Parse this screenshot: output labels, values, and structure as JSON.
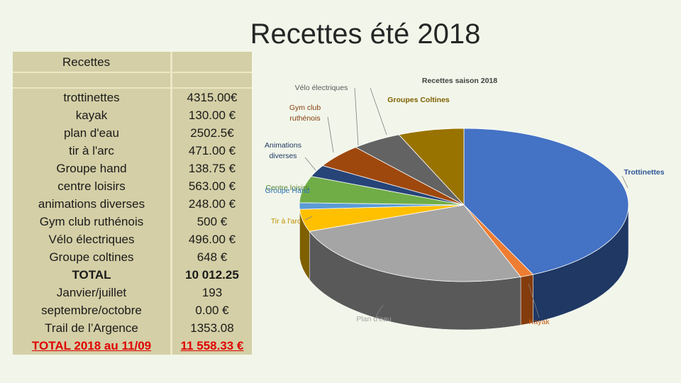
{
  "slide": {
    "title": "Recettes été 2018"
  },
  "table": {
    "header": "Recettes",
    "rows": [
      {
        "name": "trottinettes",
        "value": "4315.00€",
        "style": "normal"
      },
      {
        "name": "kayak",
        "value": "130.00 €",
        "style": "normal"
      },
      {
        "name": "plan d'eau",
        "value": "2502.5€",
        "style": "normal"
      },
      {
        "name": "tir à l'arc",
        "value": "471.00 €",
        "style": "normal"
      },
      {
        "name": "Groupe hand",
        "value": "138.75 €",
        "style": "normal"
      },
      {
        "name": "centre loisirs",
        "value": "563.00 €",
        "style": "normal"
      },
      {
        "name": "animations diverses",
        "value": "248.00 €",
        "style": "normal"
      },
      {
        "name": "Gym club ruthénois",
        "value": "500 €",
        "style": "normal"
      },
      {
        "name": "Vélo électriques",
        "value": "496.00 €",
        "style": "normal"
      },
      {
        "name": "Groupe coltines",
        "value": "648 €",
        "style": "normal"
      },
      {
        "name": "TOTAL",
        "value": "10 012.25",
        "style": "bold"
      },
      {
        "name": "Janvier/juillet",
        "value": "193",
        "style": "normal"
      },
      {
        "name": "septembre/octobre",
        "value": "0.00 €",
        "style": "normal"
      },
      {
        "name": "Trail de l’Argence",
        "value": "1353.08",
        "style": "normal"
      },
      {
        "name": "TOTAL 2018 au 11/09",
        "value": "11 558.33 €",
        "style": "red"
      }
    ]
  },
  "chart_data": {
    "type": "pie",
    "title": "Recettes saison 2018",
    "three_d": true,
    "slices": [
      {
        "label": "Trottinettes",
        "value": 4315.0,
        "color": "#4472c4",
        "side": "#1f3864"
      },
      {
        "label": "Kayak",
        "value": 130.0,
        "color": "#ed7d31",
        "side": "#843c0c"
      },
      {
        "label": "Plan d'eau",
        "value": 2502.5,
        "color": "#a5a5a5",
        "side": "#595959"
      },
      {
        "label": "Tir à l'arc",
        "value": 471.0,
        "color": "#ffc000",
        "side": "#7f6000"
      },
      {
        "label": "Groupe Hand",
        "value": 138.75,
        "color": "#5b9bd5",
        "side": "#1f4e79"
      },
      {
        "label": "Centre loisirs",
        "value": 563.0,
        "color": "#70ad47",
        "side": "#375623"
      },
      {
        "label": "Animations diverses",
        "value": 248.0,
        "color": "#264478",
        "side": "#132240"
      },
      {
        "label": "Gym club ruthénois",
        "value": 500.0,
        "color": "#9e480e",
        "side": "#4f2407"
      },
      {
        "label": "Vélo électriques",
        "value": 496.0,
        "color": "#636363",
        "side": "#333333"
      },
      {
        "label": "Groupes Coltines",
        "value": 648.0,
        "color": "#997300",
        "side": "#4d3a00"
      }
    ],
    "label_texts": {
      "trottinettes": "Trottinettes",
      "kayak": "Kayak",
      "plan_eau": "Plan d'eau",
      "tir": "Tir à l'arc",
      "groupe_hand": "Groupe Hand",
      "centre": "Centre loisirs",
      "anim_line1": "Animations",
      "anim_line2": "diverses",
      "gym_line1": "Gym club",
      "gym_line2": "ruthénois",
      "velo": "Vélo électriques",
      "coltines": "Groupes Coltines"
    }
  }
}
